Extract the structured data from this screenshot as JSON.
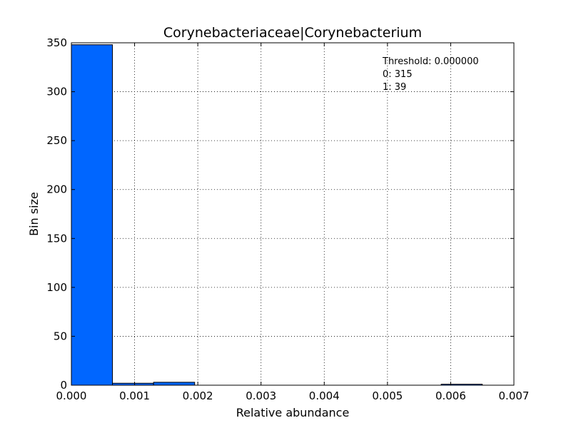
{
  "chart_data": {
    "type": "bar",
    "title": "Corynebacteriaceae|Corynebacterium",
    "xlabel": "Relative abundance",
    "ylabel": "Bin size",
    "xlim": [
      0,
      0.007
    ],
    "ylim": [
      0,
      350
    ],
    "xticks": [
      "0.000",
      "0.001",
      "0.002",
      "0.003",
      "0.004",
      "0.005",
      "0.006",
      "0.007"
    ],
    "yticks": [
      "0",
      "50",
      "100",
      "150",
      "200",
      "250",
      "300",
      "350"
    ],
    "grid": true,
    "bar_color": "#0066ff",
    "bins": [
      {
        "x0": 0.0,
        "x1": 0.00065,
        "value": 348
      },
      {
        "x0": 0.00065,
        "x1": 0.0013,
        "value": 2
      },
      {
        "x0": 0.0013,
        "x1": 0.00195,
        "value": 3
      },
      {
        "x0": 0.00195,
        "x1": 0.0026,
        "value": 0
      },
      {
        "x0": 0.0026,
        "x1": 0.00325,
        "value": 0
      },
      {
        "x0": 0.00325,
        "x1": 0.0039,
        "value": 0
      },
      {
        "x0": 0.0039,
        "x1": 0.00455,
        "value": 0
      },
      {
        "x0": 0.00455,
        "x1": 0.0052,
        "value": 0
      },
      {
        "x0": 0.0052,
        "x1": 0.00585,
        "value": 0
      },
      {
        "x0": 0.00585,
        "x1": 0.0065,
        "value": 1
      }
    ],
    "annotations": [
      "Threshold: 0.000000",
      "0: 315",
      "1: 39"
    ]
  }
}
